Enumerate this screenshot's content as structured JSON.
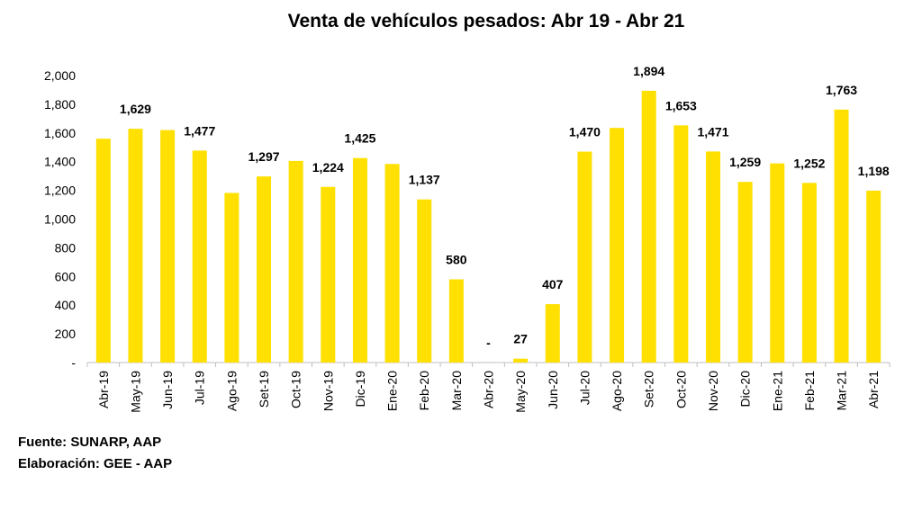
{
  "chart_data": {
    "type": "bar",
    "title": "Venta de vehículos pesados: Abr 19 - Abr 21",
    "categories": [
      "Abr-19",
      "May-19",
      "Jun-19",
      "Jul-19",
      "Ago-19",
      "Set-19",
      "Oct-19",
      "Nov-19",
      "Dic-19",
      "Ene-20",
      "Feb-20",
      "Mar-20",
      "Abr-20",
      "May-20",
      "Jun-20",
      "Jul-20",
      "Ago-20",
      "Set-20",
      "Oct-20",
      "Nov-20",
      "Dic-20",
      "Ene-21",
      "Feb-21",
      "Mar-21",
      "Abr-21"
    ],
    "values": [
      1560,
      1629,
      1620,
      1477,
      1182,
      1297,
      1405,
      1224,
      1425,
      1384,
      1137,
      580,
      0,
      27,
      407,
      1470,
      1635,
      1894,
      1653,
      1471,
      1259,
      1388,
      1252,
      1763,
      1198
    ],
    "data_labels": [
      "",
      "1,629",
      "",
      "1,477",
      "",
      "1,297",
      "",
      "1,224",
      "1,425",
      "",
      "1,137",
      "580",
      "-",
      "27",
      "407",
      "1,470",
      "",
      "1,894",
      "1,653",
      "1,471",
      "1,259",
      "",
      "1,252",
      "1,763",
      "1,198"
    ],
    "y_ticks": [
      "-",
      "200",
      "400",
      "600",
      "800",
      "1,000",
      "1,200",
      "1,400",
      "1,600",
      "1,800",
      "2,000"
    ],
    "ylim": [
      0,
      2000
    ],
    "bar_color": "#FFE000",
    "grid": false,
    "legend": "none"
  },
  "footer": {
    "source": "Fuente: SUNARP, AAP",
    "credit": "Elaboración: GEE - AAP"
  }
}
